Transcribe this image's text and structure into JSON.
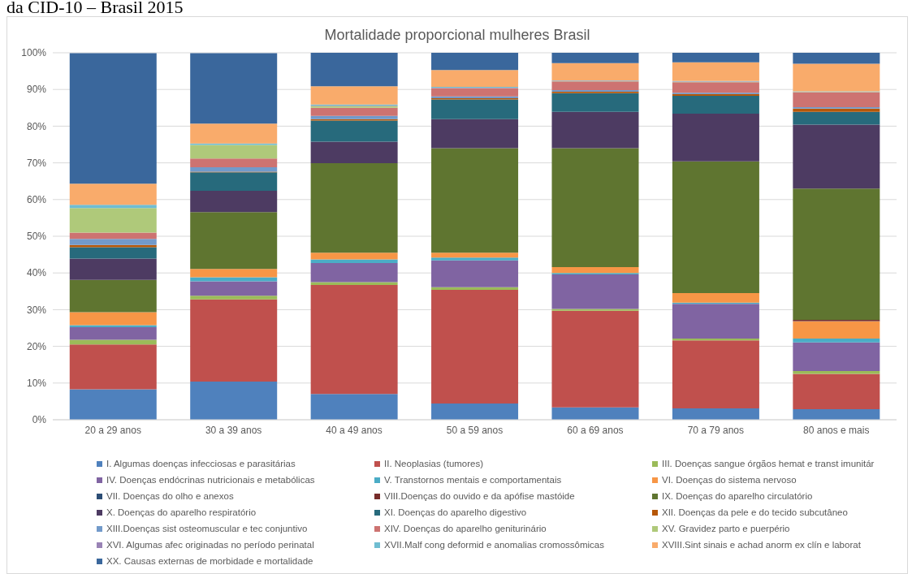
{
  "chart_data": {
    "type": "bar",
    "stacked": true,
    "title": "Mortalidade proporcional mulheres Brasil",
    "annotations": [
      "da CID-10 – Brasil 2015"
    ],
    "categories": [
      "20 a 29 anos",
      "30 a 39 anos",
      "40 a 49 anos",
      "50 a 59 anos",
      "60 a 69 anos",
      "70 a 79 anos",
      "80 anos e mais"
    ],
    "ylim": [
      0,
      100
    ],
    "yticks": [
      {
        "value": 0,
        "label": "0%"
      },
      {
        "value": 10,
        "label": "10%"
      },
      {
        "value": 20,
        "label": "20%"
      },
      {
        "value": 30,
        "label": "30%"
      },
      {
        "value": 40,
        "label": "40%"
      },
      {
        "value": 50,
        "label": "50%"
      },
      {
        "value": 60,
        "label": "60%"
      },
      {
        "value": 70,
        "label": "70%"
      },
      {
        "value": 80,
        "label": "80%"
      },
      {
        "value": 90,
        "label": "90%"
      },
      {
        "value": 100,
        "label": "100%"
      }
    ],
    "grid": "y",
    "legend": "bottom",
    "series": [
      {
        "name": "I. Algumas doenças infecciosas e parasitárias",
        "color": "#4f81bd",
        "values": [
          8.3,
          10.4,
          7.0,
          4.4,
          3.4,
          3.1,
          2.9
        ]
      },
      {
        "name": "II. Neoplasias (tumores)",
        "color": "#c0504d",
        "values": [
          12.2,
          22.4,
          29.7,
          31.0,
          26.3,
          18.5,
          9.6
        ]
      },
      {
        "name": "III. Doenças sangue órgãos hemat e transt imunitár",
        "color": "#9bbb59",
        "values": [
          1.3,
          1.0,
          0.8,
          0.7,
          0.5,
          0.5,
          0.8
        ]
      },
      {
        "name": "IV. Doenças endócrinas nutricionais e metabólicas",
        "color": "#8064a2",
        "values": [
          3.4,
          3.9,
          5.2,
          7.3,
          9.4,
          9.5,
          7.8
        ]
      },
      {
        "name": "V. Transtornos mentais e comportamentais",
        "color": "#4bacc6",
        "values": [
          0.6,
          1.1,
          1.0,
          0.8,
          0.4,
          0.3,
          1.0
        ]
      },
      {
        "name": "VI. Doenças do sistema nervoso",
        "color": "#f79646",
        "values": [
          3.5,
          2.3,
          1.8,
          1.3,
          1.6,
          2.6,
          4.7
        ]
      },
      {
        "name": "VII. Doenças do olho e anexos",
        "color": "#2c4d75",
        "values": [
          0,
          0,
          0,
          0,
          0,
          0,
          0.1
        ]
      },
      {
        "name": "VIII.Doenças do ouvido e da apófise mastóide",
        "color": "#772c2a",
        "values": [
          0,
          0,
          0,
          0,
          0,
          0,
          0.3
        ]
      },
      {
        "name": "IX. Doenças do aparelho circulatório",
        "color": "#5f7530",
        "values": [
          8.8,
          15.5,
          24.4,
          28.5,
          32.4,
          35.9,
          35.8
        ]
      },
      {
        "name": "X. Doenças do aparelho respiratório",
        "color": "#4d3b62",
        "values": [
          5.8,
          5.8,
          5.9,
          7.9,
          9.9,
          13.0,
          17.4
        ]
      },
      {
        "name": "XI. Doenças do aparelho digestivo",
        "color": "#276a7c",
        "values": [
          3.1,
          5.0,
          5.7,
          5.4,
          5.1,
          4.9,
          3.5
        ]
      },
      {
        "name": "XII. Doenças da pele e do tecido subcutâneo",
        "color": "#b65708",
        "values": [
          0.6,
          0.2,
          0.4,
          0.3,
          0.4,
          0.4,
          0.9
        ]
      },
      {
        "name": "XIII.Doenças sist osteomuscular e tec conjuntivo",
        "color": "#729aca",
        "values": [
          1.7,
          1.2,
          0.9,
          0.5,
          0.4,
          0.4,
          0.4
        ]
      },
      {
        "name": "XIV. Doenças do aparelho geniturinário",
        "color": "#cd7371",
        "values": [
          1.7,
          2.4,
          2.2,
          2.2,
          2.4,
          2.9,
          4.0
        ]
      },
      {
        "name": "XV. Gravidez parto e puerpério",
        "color": "#afc97a",
        "values": [
          6.7,
          3.7,
          0.5,
          0.1,
          0.1,
          0.1,
          0.1
        ]
      },
      {
        "name": "XVI. Algumas afec originadas no período perinatal",
        "color": "#9983b5",
        "values": [
          null,
          null,
          0.1,
          0.1,
          0.1,
          0.1,
          0.1
        ]
      },
      {
        "name": "XVII.Malf cong deformid e anomalias cromossômicas",
        "color": "#6fbdd1",
        "values": [
          0.9,
          0.4,
          0.3,
          0.2,
          0.1,
          0.1,
          0.1
        ]
      },
      {
        "name": "XVIII.Sint sinais e achad anorm ex clín e laborat",
        "color": "#f9ab6b",
        "values": [
          5.7,
          5.4,
          5.0,
          4.6,
          4.7,
          5.1,
          7.5
        ]
      },
      {
        "name": "XX. Causas externas de morbidade e mortalidade",
        "color": "#3a679c",
        "values": [
          35.6,
          19.2,
          9.1,
          4.7,
          2.8,
          2.6,
          3.0
        ]
      }
    ]
  }
}
